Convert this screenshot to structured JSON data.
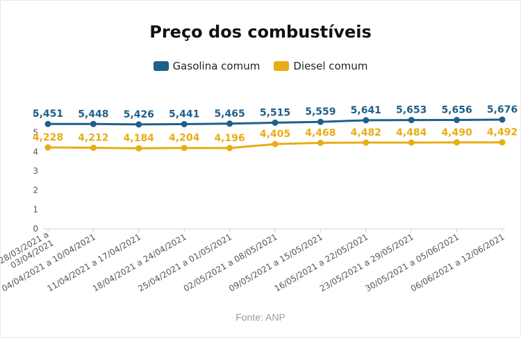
{
  "chart_data": {
    "type": "line",
    "title": "Preço dos combustíveis",
    "categories": [
      [
        "28/03/2021 a",
        "03/04/2021"
      ],
      [
        "04/04/2021 a 10/04/2021"
      ],
      [
        "11/04/2021 a 17/04/2021"
      ],
      [
        "18/04/2021 a 24/04/2021"
      ],
      [
        "25/04/2021 a 01/05/2021"
      ],
      [
        "02/05/2021 a 08/05/2021"
      ],
      [
        "09/05/2021 a 15/05/2021"
      ],
      [
        "16/05/2021 a 22/05/2021"
      ],
      [
        "23/05/2021 a 29/05/2021"
      ],
      [
        "30/05/2021 a 05/06/2021"
      ],
      [
        "06/06/2021 a 12/06/2021"
      ]
    ],
    "series": [
      {
        "name": "Gasolina comum",
        "color": "#1f5f8b",
        "values": [
          5.451,
          5.448,
          5.426,
          5.441,
          5.465,
          5.515,
          5.559,
          5.641,
          5.653,
          5.656,
          5.676
        ],
        "labels": [
          "5,451",
          "5,448",
          "5,426",
          "5,441",
          "5,465",
          "5,515",
          "5,559",
          "5,641",
          "5,653",
          "5,656",
          "5,676"
        ]
      },
      {
        "name": "Diesel comum",
        "color": "#e8ad14",
        "values": [
          4.228,
          4.212,
          4.184,
          4.204,
          4.196,
          4.405,
          4.468,
          4.482,
          4.484,
          4.49,
          4.492
        ],
        "labels": [
          "4,228",
          "4,212",
          "4,184",
          "4,204",
          "4,196",
          "4,405",
          "4,468",
          "4,482",
          "4,484",
          "4,490",
          "4,492"
        ]
      }
    ],
    "ylim": [
      0,
      6
    ],
    "yticks": [
      0,
      1,
      2,
      3,
      4,
      5,
      6
    ],
    "grid": false,
    "legend": "top-center",
    "source": "Fonte: ANP"
  }
}
